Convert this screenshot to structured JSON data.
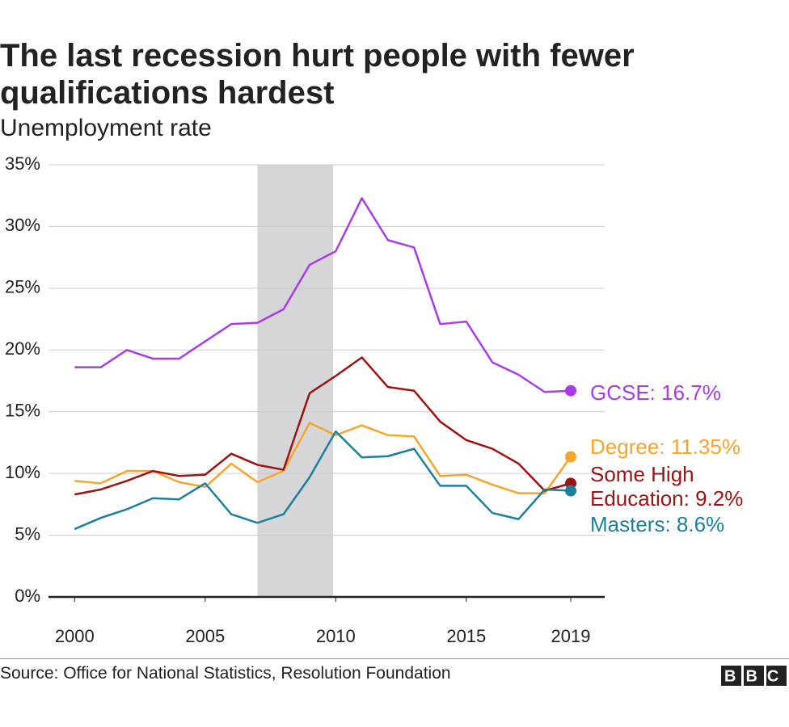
{
  "chart_data": {
    "type": "line",
    "title": "The last recession hurt people with fewer qualifications hardest",
    "subtitle": "Unemployment rate",
    "source": "Source: Office for National Statistics, Resolution Foundation",
    "logo": "BBC",
    "x": [
      2000,
      2001,
      2002,
      2003,
      2004,
      2005,
      2006,
      2007,
      2008,
      2009,
      2010,
      2011,
      2012,
      2013,
      2014,
      2015,
      2016,
      2017,
      2018,
      2019
    ],
    "xlim": [
      1999,
      2020.3
    ],
    "xticks": [
      2000,
      2005,
      2010,
      2015,
      2019
    ],
    "ylim": [
      0,
      35
    ],
    "yticks": [
      {
        "value": 0,
        "label": "0%"
      },
      {
        "value": 5,
        "label": "5%"
      },
      {
        "value": 10,
        "label": "10%"
      },
      {
        "value": 15,
        "label": "15%"
      },
      {
        "value": 20,
        "label": "20%"
      },
      {
        "value": 25,
        "label": "25%"
      },
      {
        "value": 30,
        "label": "30%"
      },
      {
        "value": 35,
        "label": "35%"
      }
    ],
    "grid": true,
    "shaded_span": [
      2007,
      2009.9
    ],
    "series": [
      {
        "name": "GCSE: 16.7%",
        "color": "#a93cea",
        "values": [
          18.6,
          18.6,
          20.0,
          19.3,
          19.3,
          20.7,
          22.1,
          22.2,
          23.3,
          26.9,
          28.0,
          32.3,
          28.9,
          28.3,
          22.1,
          22.3,
          19.0,
          18.0,
          16.6,
          16.7
        ]
      },
      {
        "name": "Degree: 11.35%",
        "color": "#f5a52b",
        "values": [
          9.4,
          9.2,
          10.2,
          10.2,
          9.3,
          8.9,
          10.8,
          9.3,
          10.2,
          14.1,
          13.1,
          13.9,
          13.1,
          13.0,
          9.8,
          9.9,
          9.1,
          8.4,
          8.4,
          11.35
        ]
      },
      {
        "name": "Some High Education: 9.2%",
        "color": "#9b1313",
        "values": [
          8.3,
          8.7,
          9.4,
          10.2,
          9.8,
          9.9,
          11.6,
          10.7,
          10.3,
          16.5,
          17.9,
          19.4,
          17.0,
          16.7,
          14.2,
          12.7,
          12.0,
          10.8,
          8.6,
          9.2
        ]
      },
      {
        "name": "Masters: 8.6%",
        "color": "#1b7f9e",
        "values": [
          5.5,
          6.4,
          7.1,
          8.0,
          7.9,
          9.2,
          6.7,
          6.0,
          6.7,
          9.7,
          13.4,
          11.3,
          11.4,
          12.0,
          9.0,
          9.0,
          6.8,
          6.3,
          8.7,
          8.6
        ]
      }
    ]
  }
}
